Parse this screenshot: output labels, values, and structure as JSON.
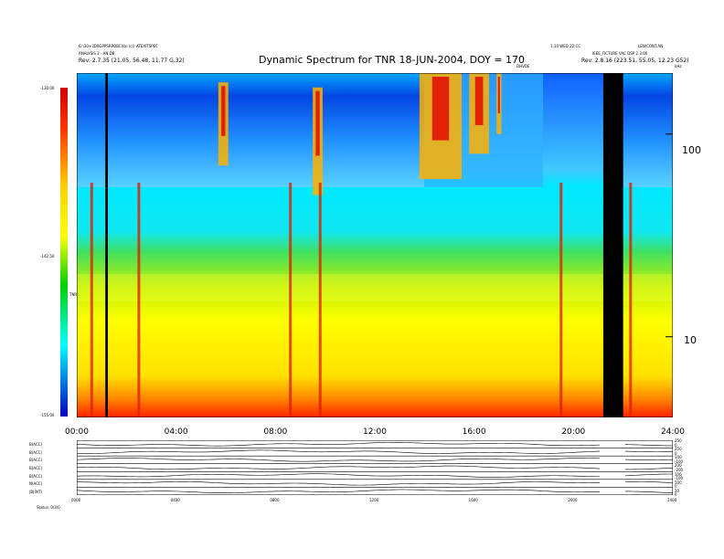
{
  "header": {
    "left_line1": "G:\\30+3D0GPPSRPOBCI(b) (c)) ATEXITSPEC",
    "left_line2": "ANALYSIS 2 - AN DB",
    "left_line3": "Rev: 2.7.35 (21.05, 56.48, 11.77 G.32)",
    "right_top_left": "1:10 WED 22:CC",
    "right_top_right": "LEN/CONT:AN",
    "right_line2": "IEEE_FICTURE VAC DSP 2.3:00",
    "right_line3": "Rev: 2.8.16 (223.51, 55.05, 12.23 G52)",
    "title": "Dynamic Spectrum for TNR 18-JUN-2004, DOY = 170",
    "marker_label": "DHVDE",
    "corner_label": "kHz"
  },
  "colorbar": {
    "label_top": "-130.00",
    "label_mid": "-142.50",
    "label_bottom": "-155.00",
    "axis_label": "TNR",
    "colors": [
      "#d00000",
      "#ff3000",
      "#ffd000",
      "#ffff00",
      "#00d000",
      "#00ffff",
      "#0000c0"
    ]
  },
  "lower_panel": {
    "labels": [
      "B(ACC)",
      "B(ACC)",
      "B(ACC)",
      "B(ACC)",
      "B(ACC)",
      "N(ACC)",
      "|B|(NT)"
    ],
    "right_labels": [
      "250",
      "0",
      "250",
      "0",
      "100",
      "-100",
      "200",
      "-200",
      "100",
      "-100",
      "500",
      "0",
      "20",
      "0"
    ],
    "x_ticks": [
      "0000",
      "0400",
      "0800",
      "1200",
      "1600",
      "2000",
      "2400"
    ],
    "footer": "Status: 0/3/0"
  },
  "chart_data": {
    "type": "heatmap",
    "title": "Dynamic Spectrum for TNR 18-JUN-2004, DOY = 170",
    "xlabel": "",
    "ylabel": "kHz",
    "x_ticks": [
      "00:00",
      "04:00",
      "08:00",
      "12:00",
      "16:00",
      "20:00",
      "24:00"
    ],
    "x_range_hours": [
      0,
      24
    ],
    "y_scale": "log",
    "y_ticks": [
      10,
      100
    ],
    "y_range": [
      4,
      200
    ],
    "colorbar_range": [
      -155.0,
      -130.0
    ],
    "colorbar_ticks": [
      -130.0,
      -142.5,
      -155.0
    ],
    "data_gaps_hours": [
      [
        1.15,
        1.25
      ],
      [
        21.2,
        22.0
      ]
    ],
    "radio_bursts": [
      {
        "start": 5.7,
        "end": 6.1,
        "fmin": 70,
        "fmax": 180
      },
      {
        "start": 9.5,
        "end": 9.9,
        "fmin": 50,
        "fmax": 170
      },
      {
        "start": 13.8,
        "end": 15.5,
        "fmin": 60,
        "fmax": 200
      },
      {
        "start": 15.8,
        "end": 16.6,
        "fmin": 80,
        "fmax": 200
      },
      {
        "start": 16.9,
        "end": 17.1,
        "fmin": 100,
        "fmax": 200
      }
    ],
    "type3_bursts_hours": [
      0.6,
      2.5,
      8.6,
      9.8,
      19.5,
      22.3
    ],
    "grid": false
  }
}
